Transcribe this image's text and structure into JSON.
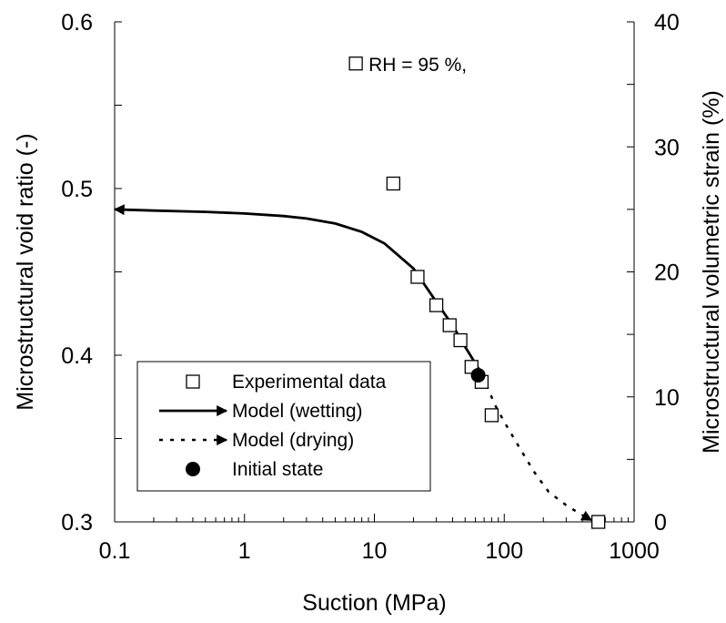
{
  "chart_data": {
    "type": "scatter",
    "x_scale": "log",
    "xlabel": "Suction (MPa)",
    "ylabel": "Microstructural void ratio (-)",
    "y2label": "Microstructural volumetric strain (%)",
    "xlim": [
      0.1,
      1000
    ],
    "ylim": [
      0.3,
      0.6
    ],
    "y2lim": [
      0,
      40
    ],
    "x_ticks": [
      0.1,
      1,
      10,
      100,
      1000
    ],
    "x_tick_labels": [
      "0.1",
      "1",
      "10",
      "100",
      "1000"
    ],
    "y_ticks": [
      0.3,
      0.4,
      0.5,
      0.6
    ],
    "y_tick_labels": [
      "0.3",
      "0.4",
      "0.5",
      "0.6"
    ],
    "y2_ticks": [
      0,
      10,
      20,
      30,
      40
    ],
    "y2_tick_labels": [
      "0",
      "10",
      "20",
      "30",
      "40"
    ],
    "grid": false,
    "legend_position": "bottom-left",
    "annotation": "RH = 95 %,",
    "series": [
      {
        "name": "Experimental data",
        "kind": "scatter",
        "marker": "open-square",
        "points": [
          [
            14,
            0.503
          ],
          [
            21.5,
            0.447
          ],
          [
            30,
            0.43
          ],
          [
            38,
            0.418
          ],
          [
            46,
            0.409
          ],
          [
            56,
            0.393
          ],
          [
            67,
            0.384
          ],
          [
            80,
            0.364
          ],
          [
            530,
            0.3
          ]
        ]
      },
      {
        "name": "Model (wetting)",
        "kind": "line",
        "style": "solid",
        "points": [
          [
            68,
            0.388
          ],
          [
            60,
            0.395
          ],
          [
            50,
            0.405
          ],
          [
            40,
            0.418
          ],
          [
            30,
            0.432
          ],
          [
            20,
            0.452
          ],
          [
            12,
            0.467
          ],
          [
            8,
            0.474
          ],
          [
            5,
            0.479
          ],
          [
            3,
            0.482
          ],
          [
            2,
            0.4835
          ],
          [
            1,
            0.485
          ],
          [
            0.5,
            0.486
          ],
          [
            0.2,
            0.4868
          ],
          [
            0.1,
            0.4875
          ]
        ]
      },
      {
        "name": "Model (drying)",
        "kind": "line",
        "style": "dotted",
        "points": [
          [
            68,
            0.388
          ],
          [
            75,
            0.38
          ],
          [
            85,
            0.37
          ],
          [
            100,
            0.36
          ],
          [
            130,
            0.345
          ],
          [
            170,
            0.33
          ],
          [
            220,
            0.318
          ],
          [
            300,
            0.31
          ],
          [
            400,
            0.304
          ],
          [
            470,
            0.301
          ]
        ]
      },
      {
        "name": "Initial state",
        "kind": "scatter",
        "marker": "filled-circle",
        "points": [
          [
            63,
            0.388
          ]
        ]
      }
    ]
  }
}
